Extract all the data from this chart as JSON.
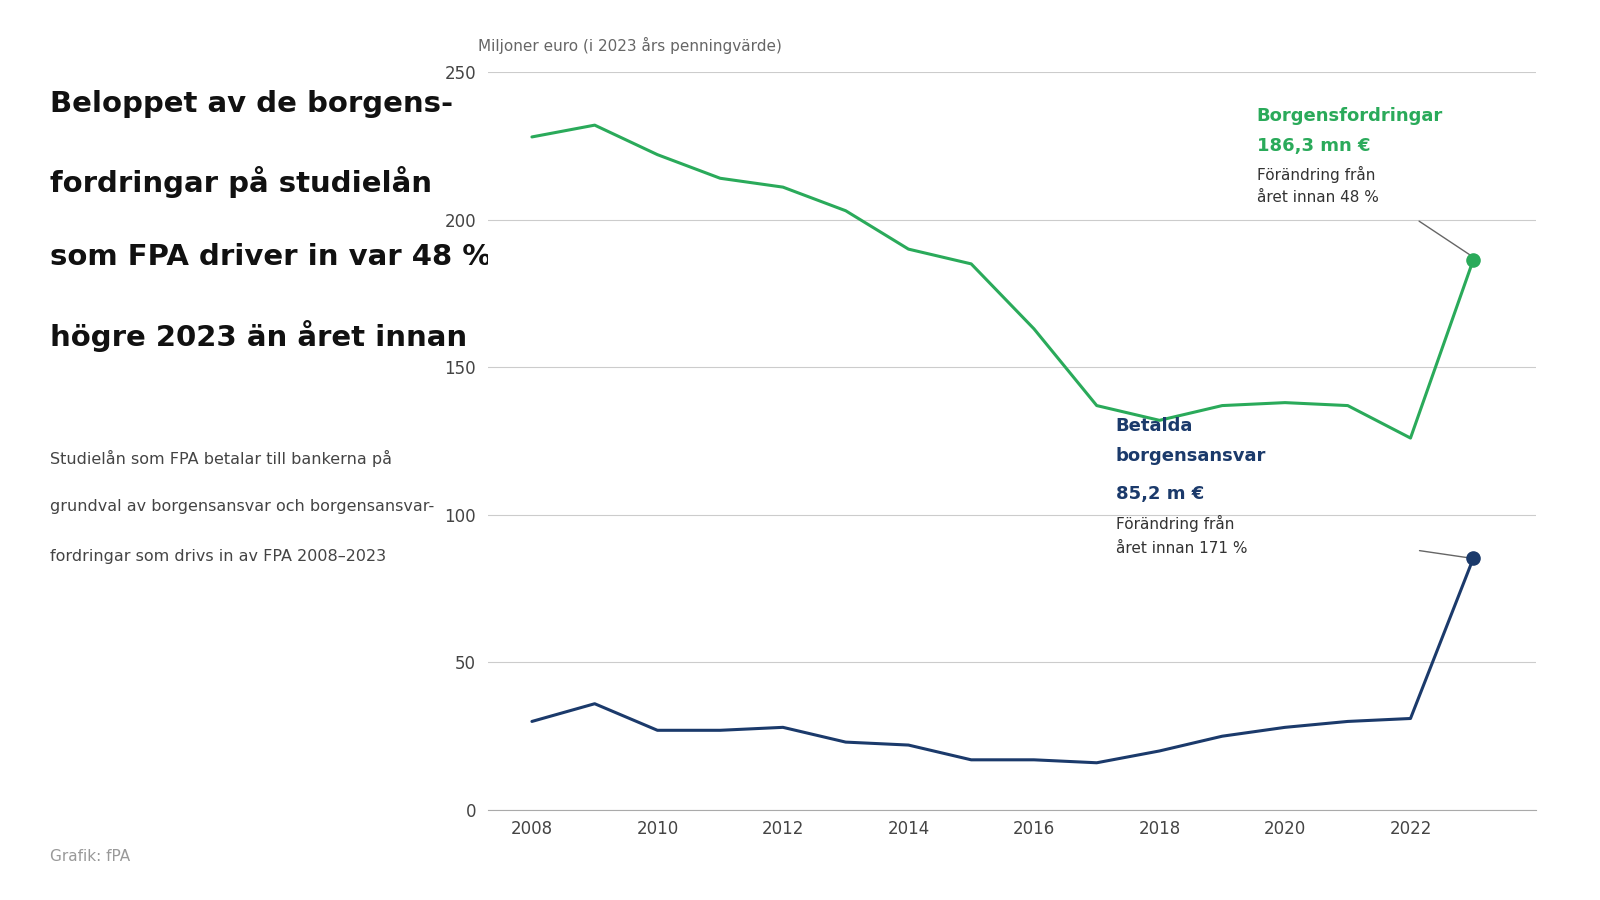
{
  "title_line1": "Beloppet av de borgens-",
  "title_line2": "fordringar på studielån",
  "title_line3": "som FPA driver in var 48 %",
  "title_line4": "högre 2023 än året innan",
  "subtitle_line1": "Studielån som FPA betalar till bankerna på",
  "subtitle_line2": "grundval av borgensansvar och borgensansvar-",
  "subtitle_line3": "fordringar som drivs in av FPA 2008–2023",
  "footer": "Grafik: fPA",
  "ylabel": "Miljoner euro (i 2023 års penningvärde)",
  "ylim": [
    0,
    250
  ],
  "yticks": [
    0,
    50,
    100,
    150,
    200,
    250
  ],
  "years": [
    2008,
    2009,
    2010,
    2011,
    2012,
    2013,
    2014,
    2015,
    2016,
    2017,
    2018,
    2019,
    2020,
    2021,
    2022,
    2023
  ],
  "green_values": [
    228,
    232,
    222,
    214,
    211,
    203,
    190,
    185,
    163,
    137,
    132,
    137,
    138,
    137,
    126,
    186.3
  ],
  "blue_values": [
    30,
    36,
    27,
    27,
    28,
    23,
    22,
    17,
    17,
    16,
    20,
    25,
    28,
    30,
    31,
    85.2
  ],
  "green_color": "#2aaa5a",
  "blue_color": "#1b3a6b",
  "green_label": "Borgensfordringar",
  "green_value_label": "186,3 mn €",
  "green_change_label1": "Förändring från",
  "green_change_label2": "året innan 48 %",
  "blue_label1": "Betalda",
  "blue_label2": "borgensansvar",
  "blue_value_label": "85,2 m €",
  "blue_change_label1": "Förändring från",
  "blue_change_label2": "året innan 171 %",
  "bg_color": "#ffffff",
  "grid_color": "#cccccc",
  "title_color": "#111111",
  "subtitle_color": "#444444",
  "footer_color": "#999999"
}
